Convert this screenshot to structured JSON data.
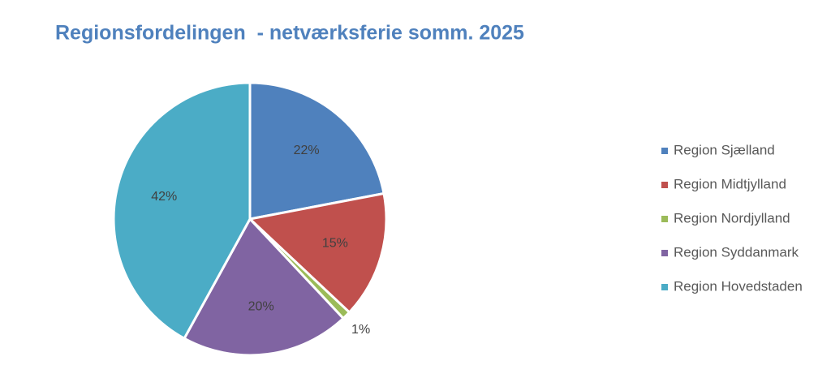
{
  "chart_data": {
    "type": "pie",
    "title": "Regionsfordelingen  - netværksferie somm. 2025",
    "categories": [
      "Region Sjælland",
      "Region Midtjylland",
      "Region Nordjylland",
      "Region Syddanmark",
      "Region Hovedstaden"
    ],
    "values": [
      22,
      15,
      1,
      20,
      42
    ],
    "value_labels": [
      "22%",
      "15%",
      "1%",
      "20%",
      "42%"
    ],
    "colors": [
      "#4f81bd",
      "#c0504d",
      "#9bbb59",
      "#8064a2",
      "#4bacc6"
    ],
    "legend": "right"
  }
}
